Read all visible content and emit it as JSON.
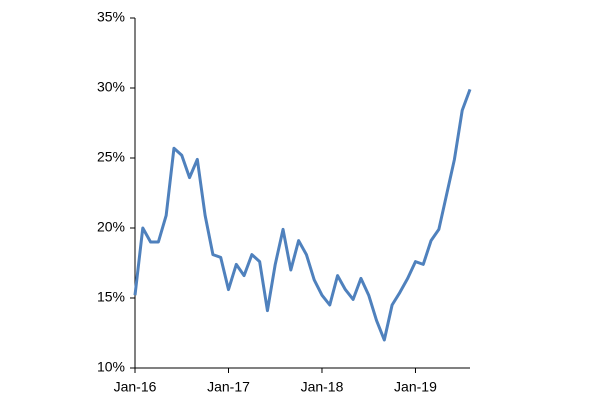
{
  "chart_data": {
    "type": "line",
    "x": [
      "2016-01",
      "2016-02",
      "2016-03",
      "2016-04",
      "2016-05",
      "2016-06",
      "2016-07",
      "2016-08",
      "2016-09",
      "2016-10",
      "2016-11",
      "2016-12",
      "2017-01",
      "2017-02",
      "2017-03",
      "2017-04",
      "2017-05",
      "2017-06",
      "2017-07",
      "2017-08",
      "2017-09",
      "2017-10",
      "2017-11",
      "2017-12",
      "2018-01",
      "2018-02",
      "2018-03",
      "2018-04",
      "2018-05",
      "2018-06",
      "2018-07",
      "2018-08",
      "2018-09",
      "2018-10",
      "2018-11",
      "2018-12",
      "2019-01",
      "2019-02",
      "2019-03",
      "2019-04",
      "2019-05",
      "2019-06",
      "2019-07",
      "2019-08"
    ],
    "series": [
      {
        "color": "#4f81bd",
        "values": [
          15.2,
          20.0,
          19.0,
          19.0,
          20.9,
          25.7,
          25.2,
          23.6,
          24.9,
          20.9,
          18.1,
          17.9,
          15.6,
          17.4,
          16.6,
          18.1,
          17.6,
          14.1,
          17.4,
          19.9,
          17.0,
          19.1,
          18.1,
          16.3,
          15.2,
          14.5,
          16.6,
          15.6,
          14.9,
          16.4,
          15.2,
          13.4,
          12.0,
          14.5,
          15.4,
          16.4,
          17.6,
          17.4,
          19.1,
          19.9,
          22.4,
          24.9,
          28.4,
          29.9
        ]
      }
    ],
    "xlim": [
      "2016-01",
      "2019-08"
    ],
    "xticks": [
      {
        "value": "2016-01",
        "label": "Jan-16"
      },
      {
        "value": "2017-01",
        "label": "Jan-17"
      },
      {
        "value": "2018-01",
        "label": "Jan-18"
      },
      {
        "value": "2019-01",
        "label": "Jan-19"
      }
    ],
    "ylim": [
      10,
      35
    ],
    "yticks": [
      {
        "value": 10,
        "label": "10%"
      },
      {
        "value": 15,
        "label": "15%"
      },
      {
        "value": 20,
        "label": "20%"
      },
      {
        "value": 25,
        "label": "25%"
      },
      {
        "value": 30,
        "label": "30%"
      },
      {
        "value": 35,
        "label": "35%"
      }
    ]
  }
}
